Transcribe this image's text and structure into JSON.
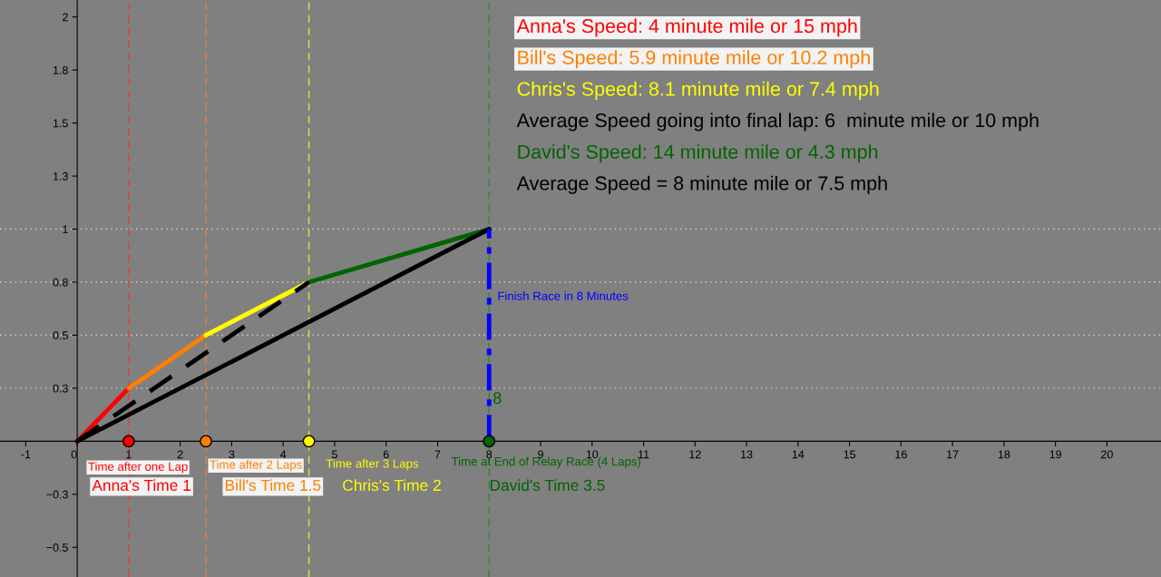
{
  "chart_data": {
    "type": "line",
    "xlim": [
      -1.5,
      21.05
    ],
    "ylim": [
      -0.64,
      2.08
    ],
    "xticks": [
      -1,
      {
        "value": 0,
        "label": "0"
      },
      1,
      2,
      3,
      4,
      5,
      6,
      7,
      8,
      9,
      10,
      11,
      12,
      13,
      14,
      15,
      16,
      17,
      18,
      19,
      20
    ],
    "yticks": [
      {
        "value": -0.5,
        "label": "−0.5"
      },
      {
        "value": -0.25,
        "label": "−0.3"
      },
      {
        "value": 0.25,
        "label": "0.3"
      },
      {
        "value": 0.5,
        "label": "0.5"
      },
      {
        "value": 0.75,
        "label": "0.8"
      },
      {
        "value": 1,
        "label": "1"
      },
      {
        "value": 1.25,
        "label": "1.3"
      },
      {
        "value": 1.5,
        "label": "1.5"
      },
      {
        "value": 1.75,
        "label": "1.8"
      },
      {
        "value": 2,
        "label": "2"
      }
    ],
    "grid": false,
    "legend": false,
    "series": [
      {
        "color": "#ff0000",
        "x": [
          0,
          1
        ],
        "values": [
          0,
          0.25
        ],
        "line_style": "solid"
      },
      {
        "color": "#ff7f00",
        "x": [
          1,
          2.5
        ],
        "values": [
          0.25,
          0.5
        ],
        "line_style": "solid"
      },
      {
        "color": "#ffff00",
        "x": [
          2.5,
          4.5
        ],
        "values": [
          0.5,
          0.75
        ],
        "line_style": "solid"
      },
      {
        "color": "#006400",
        "x": [
          4.5,
          8
        ],
        "values": [
          0.75,
          1
        ],
        "line_style": "solid"
      },
      {
        "color": "#000000",
        "x": [
          0,
          4.5
        ],
        "values": [
          0,
          0.75
        ],
        "line_style": "dashed"
      },
      {
        "color": "#000000",
        "x": [
          0,
          8
        ],
        "values": [
          0,
          1
        ],
        "line_style": "solid"
      },
      {
        "color": "#0000ff",
        "x": [
          8,
          8
        ],
        "values": [
          0,
          1
        ],
        "line_style": "dashdot"
      },
      {
        "type": "scatter",
        "marker": "circle",
        "colors": [
          "#ff0000",
          "#ff7f00",
          "#ffff00",
          "#006400"
        ],
        "x": [
          1,
          2.5,
          4.5,
          8
        ],
        "values": [
          0,
          0,
          0,
          0
        ]
      }
    ],
    "ref_lines": [
      {
        "axis": "x",
        "value": 1,
        "color": "#e04040",
        "line_style": "dashed"
      },
      {
        "axis": "x",
        "value": 2.5,
        "color": "#e08040",
        "line_style": "dashed"
      },
      {
        "axis": "x",
        "value": 4.5,
        "color": "#e0e040",
        "line_style": "dashed"
      },
      {
        "axis": "x",
        "value": 8,
        "color": "#2e8b2e",
        "line_style": "dashed"
      },
      {
        "axis": "y",
        "value": 0.25,
        "color": "#d3d3d3",
        "line_style": "dotted"
      },
      {
        "axis": "y",
        "value": 0.5,
        "color": "#d3d3d3",
        "line_style": "dotted"
      },
      {
        "axis": "y",
        "value": 0.75,
        "color": "#d3d3d3",
        "line_style": "dotted"
      },
      {
        "axis": "y",
        "value": 1,
        "color": "#d3d3d3",
        "line_style": "dotted"
      }
    ],
    "annotations": [
      "Anna's Speed: 4 minute mile or 15 mph",
      "Bill's Speed: 5.9 minute mile or 10.2 mph",
      "Chris's Speed: 8.1 minute mile or 7.4 mph",
      "Average Speed going into final lap: 6  minute mile or 10 mph",
      "David's Speed: 14 minute mile or 4.3 mph",
      "Average Speed = 8 minute mile or 7.5 mph",
      "Time after one Lap",
      "Time after 2 Laps",
      "Time after 3 Laps",
      "Time at End of Relay Race (4 Laps)",
      "Anna's Time 1",
      "Bill's Time 1.5",
      "Chris's Time 2",
      "David's Time 3.5",
      "Finish Race in 8 Minutes",
      "8"
    ]
  }
}
